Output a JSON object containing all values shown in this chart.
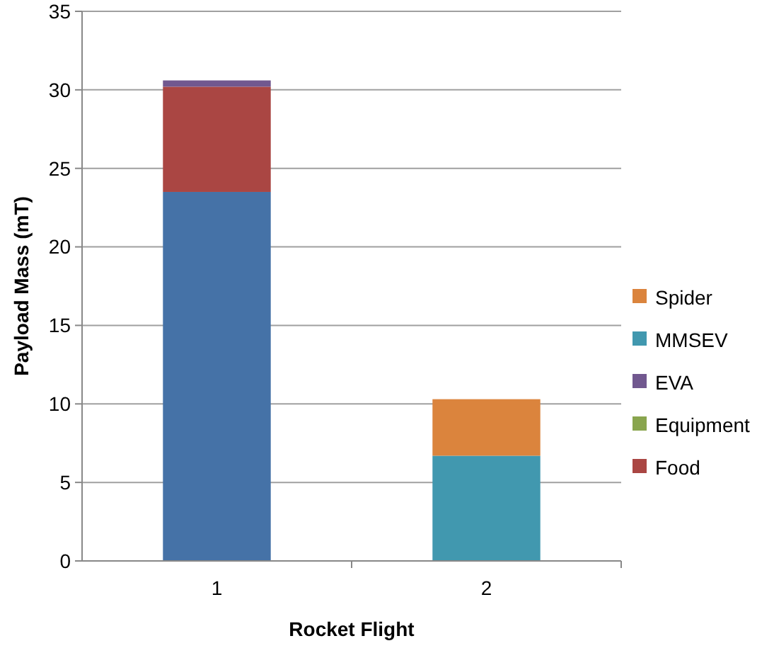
{
  "chart_data": {
    "type": "bar",
    "stacked": true,
    "xlabel": "Rocket Flight",
    "ylabel": "Payload Mass (mT)",
    "categories": [
      "1",
      "2"
    ],
    "ylim": [
      0,
      35
    ],
    "yticks": [
      0,
      5,
      10,
      15,
      20,
      25,
      30,
      35
    ],
    "grid": "y",
    "legend": "right",
    "series": [
      {
        "color": "#4572a7",
        "values": [
          23.5,
          0
        ]
      },
      {
        "name": "Food",
        "color": "#aa4643",
        "values": [
          6.7,
          0
        ]
      },
      {
        "name": "Equipment",
        "color": "#89a54e",
        "values": [
          0,
          0
        ]
      },
      {
        "name": "EVA",
        "color": "#71588f",
        "values": [
          0.4,
          0
        ]
      },
      {
        "name": "MMSEV",
        "color": "#4198af",
        "values": [
          0,
          6.7
        ]
      },
      {
        "name": "Spider",
        "color": "#db843d",
        "values": [
          0,
          3.6
        ]
      }
    ]
  }
}
